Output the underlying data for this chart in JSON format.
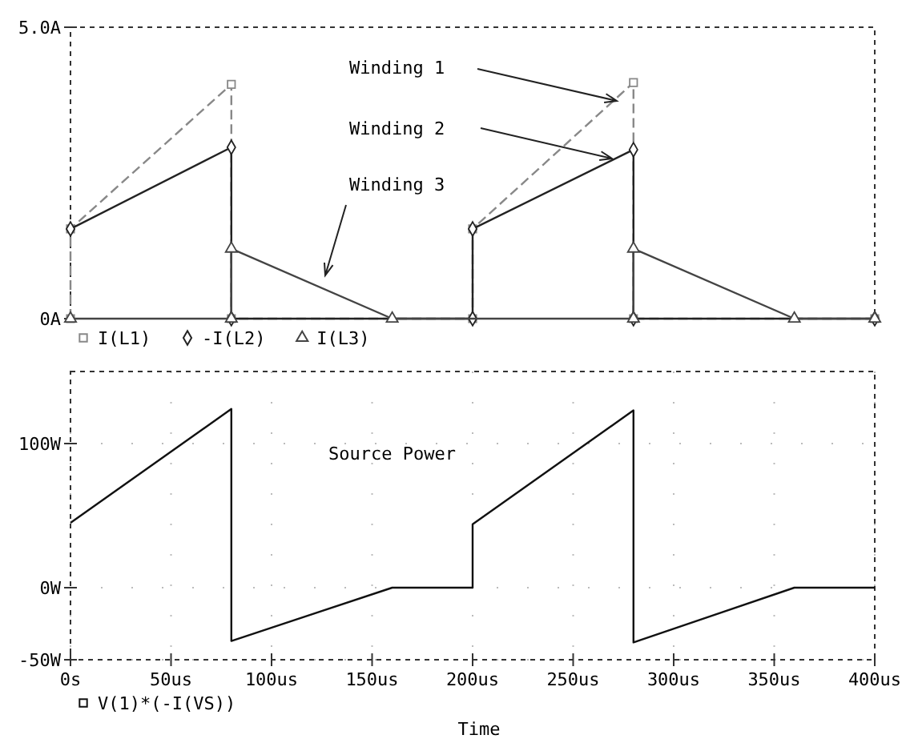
{
  "chart_data": [
    {
      "type": "line",
      "ylim": [
        0,
        5
      ],
      "yticks": [
        {
          "value": 5,
          "label": "5.0A"
        },
        {
          "value": 0,
          "label": "0A"
        }
      ],
      "xlim": [
        0,
        400
      ],
      "tick_labels": "y",
      "grid": false,
      "legend": "bottom left",
      "annotations": [
        "Winding 1",
        "Winding 2",
        "Winding 3"
      ],
      "series": [
        {
          "name": "I(L1)",
          "color": "#888888",
          "marker": "square",
          "line_style": "dashed",
          "x": [
            0,
            0,
            80,
            80,
            200,
            200,
            280,
            280,
            400
          ],
          "values": [
            0,
            1.54,
            4.02,
            0,
            0,
            1.54,
            4.05,
            0,
            0
          ]
        },
        {
          "name": "-I(L2)",
          "color": "#222222",
          "marker": "diamond",
          "line_style": "solid",
          "x": [
            0,
            80,
            80,
            200,
            200,
            280,
            280,
            400
          ],
          "values": [
            1.54,
            2.94,
            0,
            0,
            1.54,
            2.9,
            0,
            0
          ]
        },
        {
          "name": "I(L3)",
          "color": "#444444",
          "marker": "triangle",
          "line_style": "solid",
          "x": [
            0,
            80,
            80,
            160,
            280,
            280,
            360,
            400
          ],
          "values": [
            0,
            0,
            1.2,
            0,
            0,
            1.2,
            0,
            0
          ]
        }
      ]
    },
    {
      "type": "line",
      "ylim": [
        -50,
        150
      ],
      "yticks": [
        {
          "value": -50,
          "label": "-50W"
        },
        {
          "value": 0,
          "label": "0W"
        },
        {
          "value": 100,
          "label": "100W"
        }
      ],
      "xlim": [
        0,
        400
      ],
      "xticks": [
        {
          "value": 0,
          "label": "0s"
        },
        {
          "value": 50,
          "label": "50us"
        },
        {
          "value": 100,
          "label": "100us"
        },
        {
          "value": 150,
          "label": "150us"
        },
        {
          "value": 200,
          "label": "200us"
        },
        {
          "value": 250,
          "label": "250us"
        },
        {
          "value": 300,
          "label": "300us"
        },
        {
          "value": 350,
          "label": "350us"
        },
        {
          "value": 400,
          "label": "400us"
        }
      ],
      "xlabel": "Time",
      "grid": true,
      "legend": "bottom left",
      "annotations": [
        "Source Power"
      ],
      "series": [
        {
          "name": "V(1)*(-I(VS))",
          "color": "#111111",
          "marker": "none",
          "line_style": "solid",
          "x": [
            0,
            80,
            80,
            160,
            200,
            200,
            280,
            280,
            360,
            400
          ],
          "values": [
            45,
            124,
            -37,
            0,
            0,
            44,
            123,
            -38,
            0,
            0
          ]
        }
      ]
    }
  ]
}
